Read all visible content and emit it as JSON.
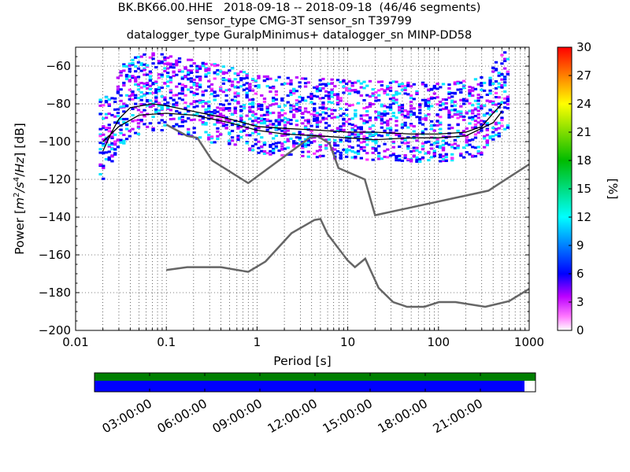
{
  "header": {
    "line1": "BK.BK66.00.HHE   2018-09-18 -- 2018-09-18  (46/46 segments)",
    "line2": "sensor_type CMG-3T sensor_sn T39799",
    "line3": "datalogger_type GuralpMinimus+ datalogger_sn MINP-DD58"
  },
  "chart_data": [
    {
      "type": "heatmap",
      "title": "BK.BK66.00.HHE   2018-09-18 -- 2018-09-18  (46/46 segments)",
      "xlabel": "Period [s]",
      "ylabel": "Power [m²/s⁴/Hz] [dB]",
      "ylabel_parts": {
        "prefix": "Power [",
        "m": "m",
        "sup2": "2",
        "slash1": "/s",
        "sup4": "4",
        "slash2": "/",
        "hz": "Hz",
        "suffix": "] [dB]"
      },
      "x_scale": "log",
      "xlim": [
        0.01,
        1000
      ],
      "ylim": [
        -200,
        -50
      ],
      "x_ticks": [
        0.01,
        0.1,
        1,
        10,
        100,
        1000
      ],
      "x_tick_labels": [
        "0.01",
        "0.1",
        "1",
        "10",
        "100",
        "1000"
      ],
      "y_ticks": [
        -200,
        -180,
        -160,
        -140,
        -120,
        -100,
        -80,
        -60
      ],
      "y_tick_labels": [
        "−200",
        "−180",
        "−160",
        "−140",
        "−120",
        "−100",
        "−80",
        "−60"
      ],
      "grid": "dotted",
      "colorbar": {
        "label": "[%]",
        "range": [
          0,
          30
        ],
        "ticks": [
          0,
          3,
          6,
          9,
          12,
          15,
          18,
          21,
          24,
          27,
          30
        ],
        "tick_labels": [
          "0",
          "3",
          "6",
          "9",
          "12",
          "15",
          "18",
          "21",
          "24",
          "27",
          "30"
        ]
      },
      "noise_models": [
        {
          "name": "NHNM",
          "x": [
            0.1,
            0.17,
            0.22,
            0.32,
            0.8,
            3.8,
            4.6,
            6.3,
            7.9,
            15.4,
            20,
            354.8,
            1000
          ],
          "y": [
            -91,
            -97,
            -98,
            -110,
            -122,
            -98,
            -97,
            -101,
            -114,
            -120,
            -139,
            -126,
            -112
          ]
        },
        {
          "name": "NLNM",
          "x": [
            0.1,
            0.17,
            0.4,
            0.8,
            1.24,
            2.4,
            4.3,
            5.0,
            6.0,
            10.0,
            12.0,
            15.6,
            21.9,
            31.6,
            45,
            70,
            101,
            154,
            328,
            600,
            1000
          ],
          "y": [
            -168,
            -166.5,
            -166.5,
            -169,
            -163.5,
            -148.5,
            -141.5,
            -141,
            -149,
            -163,
            -166.5,
            -162,
            -177.5,
            -185,
            -187.5,
            -187.5,
            -185,
            -185,
            -187.5,
            -184.5,
            -178
          ]
        }
      ],
      "mode_curve": {
        "x": [
          0.02,
          0.025,
          0.03,
          0.04,
          0.07,
          0.1,
          0.2,
          0.5,
          1,
          2,
          5,
          10,
          20,
          50,
          100,
          200,
          300,
          400,
          500
        ],
        "y": [
          -105,
          -95,
          -88,
          -82,
          -80,
          -81,
          -84,
          -88,
          -92,
          -93,
          -94,
          -95,
          -95,
          -96,
          -96,
          -95,
          -92,
          -85,
          -80
        ]
      },
      "mean_curve": {
        "x": [
          0.02,
          0.03,
          0.05,
          0.1,
          0.2,
          0.5,
          1,
          2,
          5,
          10,
          20,
          50,
          100,
          200,
          400,
          500
        ],
        "y": [
          -100,
          -92,
          -86,
          -85,
          -86,
          -90,
          -94,
          -96,
          -97,
          -98,
          -99,
          -98,
          -98,
          -97,
          -90,
          -84
        ]
      }
    },
    {
      "type": "timeline",
      "x_tick_labels": [
        "03:00:00",
        "06:00:00",
        "09:00:00",
        "12:00:00",
        "15:00:00",
        "18:00:00",
        "21:00:00"
      ],
      "x_ticks_hours": [
        3,
        6,
        9,
        12,
        15,
        18,
        21
      ],
      "range_hours": [
        0,
        24
      ],
      "data_coverage": [
        [
          0,
          23.4
        ]
      ],
      "colors": {
        "green": "#007f00",
        "blue": "#0000ff"
      }
    }
  ]
}
